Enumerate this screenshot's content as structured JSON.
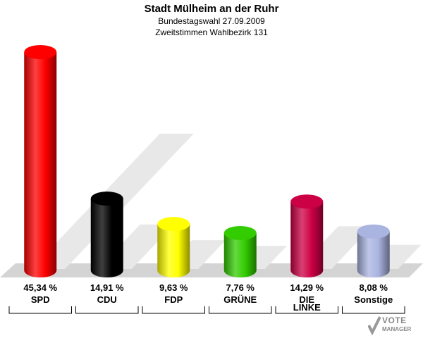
{
  "header": {
    "title": "Stadt Mülheim an der Ruhr",
    "subtitle1": "Bundestagswahl 27.09.2009",
    "subtitle2": "Zweitstimmen Wahlbezirk 131"
  },
  "logo": {
    "line1": "VOTE",
    "line2": "MANAGER"
  },
  "chart_data": {
    "type": "bar",
    "title": "Stadt Mülheim an der Ruhr",
    "subtitle": "Bundestagswahl 27.09.2009 / Zweitstimmen Wahlbezirk 131",
    "categories": [
      "SPD",
      "CDU",
      "FDP",
      "GRÜNE",
      "DIE LINKE",
      "Sonstige"
    ],
    "category_lines": [
      [
        "SPD"
      ],
      [
        "CDU"
      ],
      [
        "FDP"
      ],
      [
        "GRÜNE"
      ],
      [
        "DIE",
        "LINKE"
      ],
      [
        "Sonstige"
      ]
    ],
    "values": [
      45.34,
      14.91,
      9.63,
      7.76,
      14.29,
      8.08
    ],
    "value_labels": [
      "45,34 %",
      "14,91 %",
      "9,63 %",
      "7,76 %",
      "14,29 %",
      "8,08 %"
    ],
    "colors": [
      "#ff0000",
      "#000000",
      "#ffff00",
      "#33cc00",
      "#cc0044",
      "#aab4e0"
    ],
    "ylim": [
      0,
      45.34
    ],
    "grid": false,
    "legend": "none"
  }
}
